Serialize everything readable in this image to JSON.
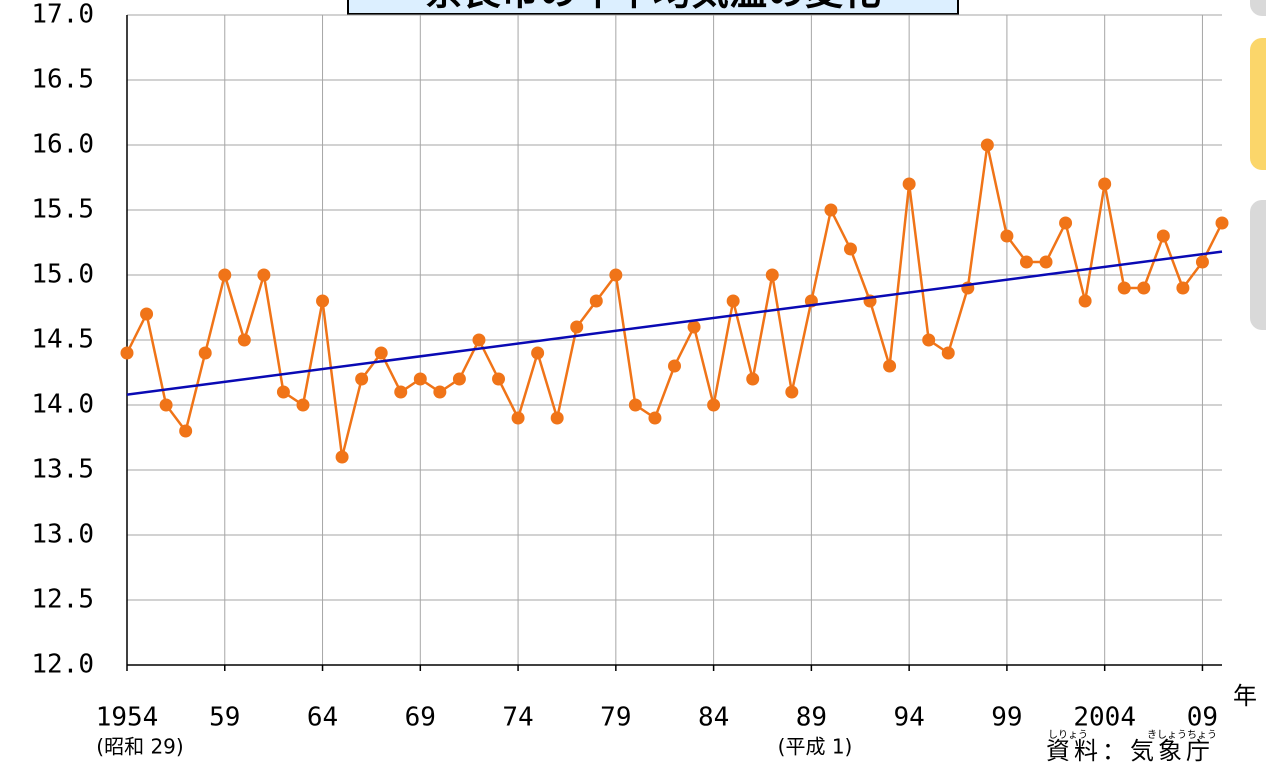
{
  "chart_data": {
    "type": "line",
    "title": "奈良市の年平均気温の変化",
    "series": [
      {
        "color": "#f07418",
        "marker": "circle",
        "x": [
          1954,
          1955,
          1956,
          1957,
          1958,
          1959,
          1960,
          1961,
          1962,
          1963,
          1964,
          1965,
          1966,
          1967,
          1968,
          1969,
          1970,
          1971,
          1972,
          1973,
          1974,
          1975,
          1976,
          1977,
          1978,
          1979,
          1980,
          1981,
          1982,
          1983,
          1984,
          1985,
          1986,
          1987,
          1988,
          1989,
          1990,
          1991,
          1992,
          1993,
          1994,
          1995,
          1996,
          1997,
          1998,
          1999,
          2000,
          2001,
          2002,
          2003,
          2004,
          2005,
          2006,
          2007,
          2008,
          2009,
          2010
        ],
        "values": [
          14.4,
          14.7,
          14.0,
          13.8,
          14.4,
          15.0,
          14.5,
          15.0,
          14.1,
          14.0,
          14.8,
          13.6,
          14.2,
          14.4,
          14.1,
          14.2,
          14.1,
          14.2,
          14.5,
          14.2,
          13.9,
          14.4,
          13.9,
          14.6,
          14.8,
          15.0,
          14.0,
          13.9,
          14.3,
          14.6,
          14.0,
          14.8,
          14.2,
          15.0,
          14.1,
          14.8,
          15.5,
          15.2,
          14.8,
          14.3,
          15.7,
          14.5,
          14.4,
          14.9,
          16.0,
          15.3,
          15.1,
          15.1,
          15.4,
          14.8,
          15.7,
          14.9,
          14.9,
          15.3,
          14.9,
          15.1,
          15.4
        ]
      },
      {
        "color": "#0a0ab4",
        "marker": "none",
        "x": [
          1954,
          2010
        ],
        "values": [
          14.08,
          15.18
        ]
      }
    ],
    "xlim": [
      1954,
      2010
    ],
    "xticks": [
      1954,
      {
        "value": 1959,
        "label": "59"
      },
      {
        "value": 1964,
        "label": "64"
      },
      {
        "value": 1969,
        "label": "69"
      },
      {
        "value": 1974,
        "label": "74"
      },
      {
        "value": 1979,
        "label": "79"
      },
      {
        "value": 1984,
        "label": "84"
      },
      {
        "value": 1989,
        "label": "89"
      },
      {
        "value": 1994,
        "label": "94"
      },
      {
        "value": 1999,
        "label": "99"
      },
      2004,
      {
        "value": 2009,
        "label": "09"
      }
    ],
    "ylim": [
      12,
      17
    ],
    "yticks": [
      {
        "value": 12,
        "label": "12.0"
      },
      {
        "value": 12.5,
        "label": "12.5"
      },
      {
        "value": 13,
        "label": "13.0"
      },
      {
        "value": 13.5,
        "label": "13.5"
      },
      {
        "value": 14,
        "label": "14.0"
      },
      {
        "value": 14.5,
        "label": "14.5"
      },
      {
        "value": 15,
        "label": "15.0"
      },
      {
        "value": 15.5,
        "label": "15.5"
      },
      {
        "value": 16,
        "label": "16.0"
      },
      {
        "value": 16.5,
        "label": "16.5"
      },
      {
        "value": 17,
        "label": "17.0"
      }
    ],
    "grid": true,
    "annotations": {
      "year_unit": "年",
      "showa": "(昭和 29)",
      "heisei": "(平成 1)",
      "source": "資料：気象庁",
      "ruby_source": "しりょう",
      "ruby_agency": "きしょうちょう"
    }
  }
}
